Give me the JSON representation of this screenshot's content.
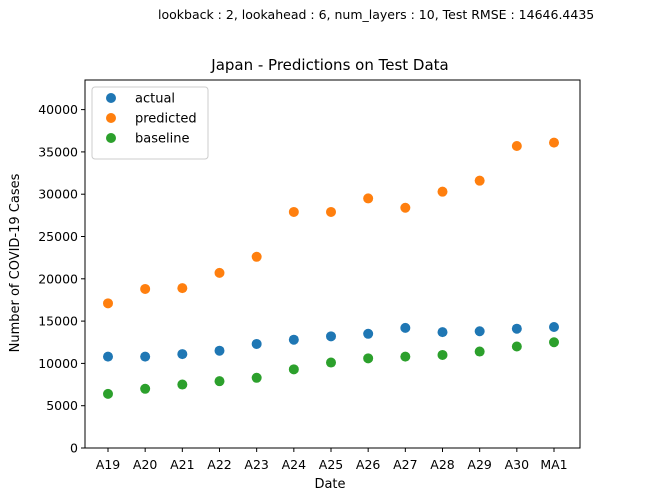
{
  "header": {
    "suptitle": "lookback : 2, lookahead : 6, num_layers : 10, Test RMSE : 14646.4435"
  },
  "chart_data": {
    "type": "scatter",
    "title": "Japan - Predictions on Test Data",
    "xlabel": "Date",
    "ylabel": "Number of COVID-19 Cases",
    "categories": [
      "A19",
      "A20",
      "A21",
      "A22",
      "A23",
      "A24",
      "A25",
      "A26",
      "A27",
      "A28",
      "A29",
      "A30",
      "MA1"
    ],
    "ylim": [
      0,
      43500
    ],
    "yticks": [
      0,
      5000,
      10000,
      15000,
      20000,
      25000,
      30000,
      35000,
      40000
    ],
    "grid": false,
    "legend_position": "top-left",
    "series": [
      {
        "name": "actual",
        "color": "#1f77b4",
        "values": [
          10800,
          10800,
          11100,
          11500,
          12300,
          12800,
          13200,
          13500,
          14200,
          13700,
          13800,
          14100,
          14300
        ]
      },
      {
        "name": "predicted",
        "color": "#ff7f0e",
        "values": [
          17100,
          18800,
          18900,
          20700,
          22600,
          27900,
          27900,
          29500,
          28400,
          30300,
          31600,
          35700,
          36100
        ]
      },
      {
        "name": "baseline",
        "color": "#2ca02c",
        "values": [
          6400,
          7000,
          7500,
          7900,
          8300,
          9300,
          10100,
          10600,
          10800,
          11000,
          11400,
          12000,
          12500
        ]
      }
    ]
  }
}
